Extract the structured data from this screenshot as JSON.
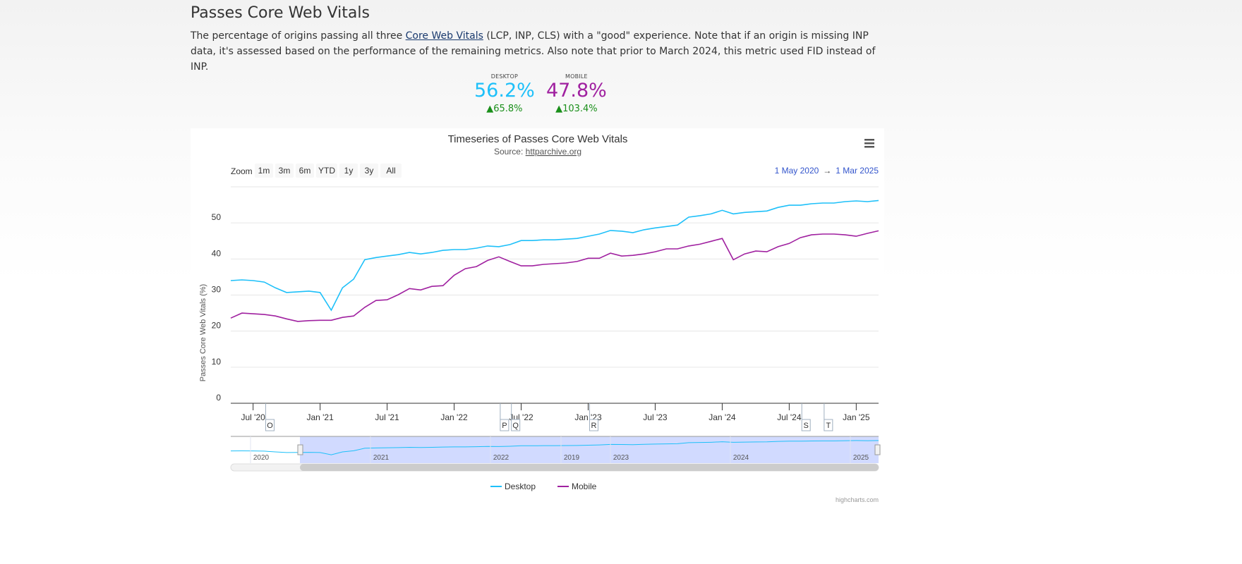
{
  "page": {
    "title": "Passes Core Web Vitals",
    "desc_before": "The percentage of origins passing all three ",
    "desc_link": "Core Web Vitals",
    "desc_after": " (LCP, INP, CLS) with a \"good\" experience. Note that if an origin is missing INP data, it's assessed based on the performance of the remaining metrics. Also note that prior to March 2024, this metric used FID instead of INP."
  },
  "kpis": [
    {
      "label": "DESKTOP",
      "value": "56.2%",
      "change": "▲65.8%",
      "color": "#1ec0f9"
    },
    {
      "label": "MOBILE",
      "value": "47.8%",
      "change": "▲103.4%",
      "color": "#a021a0"
    }
  ],
  "chart_toolbar": {
    "zoom_label": "Zoom",
    "ranges": [
      "1m",
      "3m",
      "6m",
      "YTD",
      "1y",
      "3y",
      "All"
    ],
    "from": "1 May 2020",
    "arrow": "→",
    "to": "1 Mar 2025",
    "menu_icon": "hamburger-menu-icon"
  },
  "credits": "highcharts.com",
  "chart_data": {
    "type": "line",
    "title": "Timeseries of Passes Core Web Vitals",
    "subtitle_prefix": "Source: ",
    "subtitle_link": "httparchive.org",
    "ylabel": "Passes Core Web Vitals (%)",
    "ylim": [
      0,
      60
    ],
    "yticks": [
      0,
      10,
      20,
      30,
      40,
      50
    ],
    "grid": true,
    "x_start": "2020-05",
    "x_end": "2025-03",
    "x_interval": "monthly",
    "xticks": [
      {
        "label": "Jul '20",
        "date": "2020-07"
      },
      {
        "label": "Jan '21",
        "date": "2021-01"
      },
      {
        "label": "Jul '21",
        "date": "2021-07"
      },
      {
        "label": "Jan '22",
        "date": "2022-01"
      },
      {
        "label": "Jul '22",
        "date": "2022-07"
      },
      {
        "label": "Jan '23",
        "date": "2023-01"
      },
      {
        "label": "Jul '23",
        "date": "2023-07"
      },
      {
        "label": "Jan '24",
        "date": "2024-01"
      },
      {
        "label": "Jul '24",
        "date": "2024-07"
      },
      {
        "label": "Jan '25",
        "date": "2025-01"
      }
    ],
    "flags": [
      {
        "label": "O",
        "date": "2020-08"
      },
      {
        "label": "P",
        "date": "2022-05"
      },
      {
        "label": "Q",
        "date": "2022-06"
      },
      {
        "label": "R",
        "date": "2023-01"
      },
      {
        "label": "S",
        "date": "2024-08"
      },
      {
        "label": "T",
        "date": "2024-10"
      }
    ],
    "navigator_labels": [
      "2020",
      "2021",
      "2022",
      "2019",
      "2023",
      "2024",
      "2025"
    ],
    "legend_position": "bottom",
    "series": [
      {
        "name": "Desktop",
        "color": "#1ec0f9",
        "values": [
          34.0,
          34.2,
          34.0,
          33.6,
          32.0,
          30.7,
          30.9,
          31.1,
          30.7,
          25.8,
          32.0,
          34.4,
          39.8,
          40.4,
          40.8,
          41.2,
          41.8,
          41.4,
          41.8,
          42.4,
          42.6,
          42.6,
          43.0,
          43.6,
          43.4,
          44.0,
          45.1,
          45.1,
          45.3,
          45.3,
          45.5,
          45.7,
          46.3,
          46.9,
          47.9,
          47.7,
          47.3,
          48.1,
          48.6,
          49.0,
          49.4,
          51.6,
          52.0,
          52.5,
          53.5,
          52.5,
          52.9,
          53.1,
          53.3,
          54.3,
          54.9,
          54.9,
          55.3,
          55.5,
          55.5,
          55.9,
          56.1,
          55.9,
          56.2
        ]
      },
      {
        "name": "Mobile",
        "color": "#a021a0",
        "values": [
          23.6,
          25.0,
          24.8,
          24.6,
          24.2,
          23.4,
          22.7,
          22.9,
          23.0,
          23.0,
          23.8,
          24.2,
          26.6,
          28.5,
          28.7,
          30.1,
          31.8,
          31.4,
          32.4,
          32.6,
          35.5,
          37.3,
          37.9,
          39.6,
          40.6,
          39.3,
          38.1,
          38.1,
          38.5,
          38.7,
          38.9,
          39.3,
          40.2,
          40.2,
          41.6,
          40.8,
          41.0,
          41.4,
          42.0,
          42.8,
          42.8,
          43.6,
          44.1,
          44.9,
          45.7,
          39.8,
          41.4,
          42.2,
          42.0,
          43.4,
          44.3,
          45.9,
          46.7,
          46.9,
          46.9,
          46.7,
          46.3,
          47.1,
          47.8
        ]
      }
    ]
  }
}
